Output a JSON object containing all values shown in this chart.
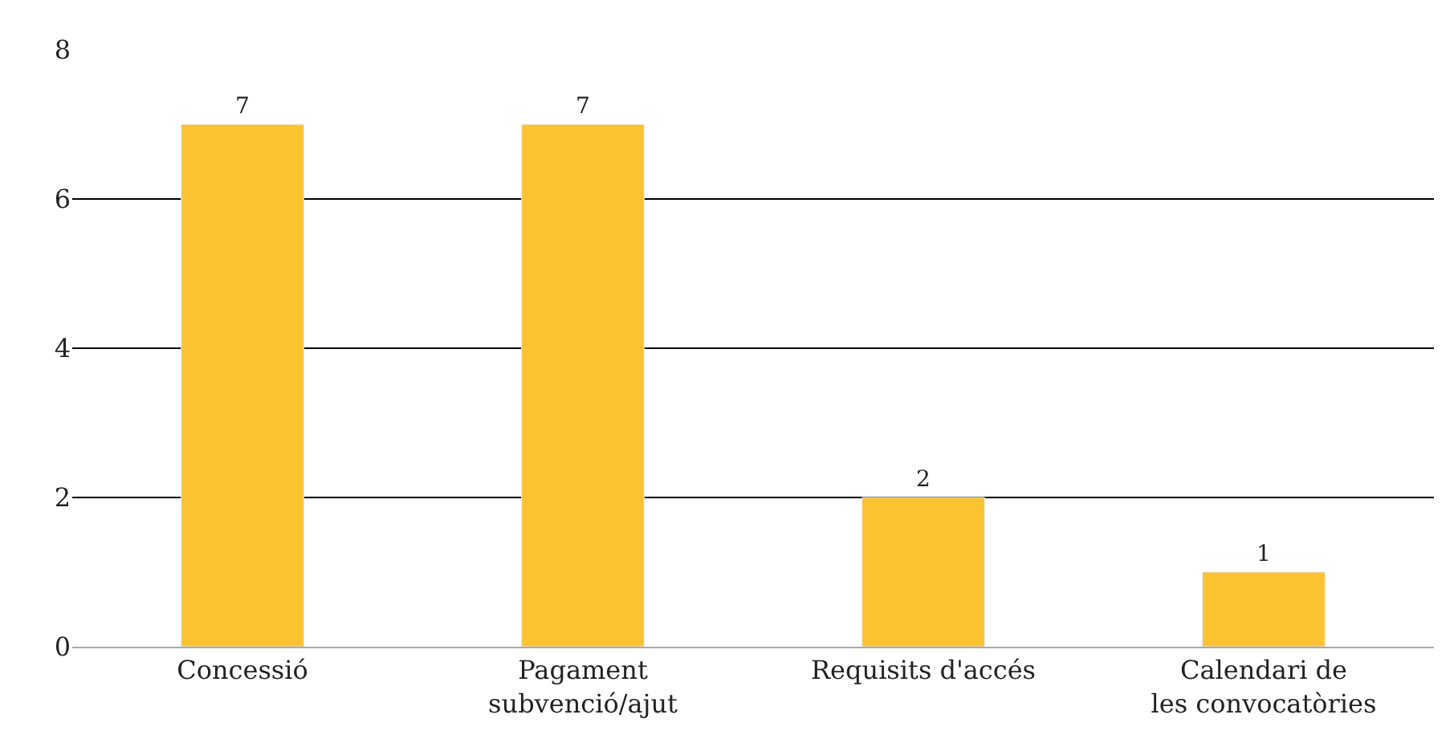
{
  "chart_data": {
    "type": "bar",
    "categories": [
      "Concessió",
      "Pagament\nsubvenció/ajut",
      "Requisits d'accés",
      "Calendari de\nles convocatòries"
    ],
    "values": [
      7,
      7,
      2,
      1
    ],
    "color": "#fbc232",
    "ylim": [
      0,
      8
    ],
    "yticks": [
      0,
      2,
      4,
      6,
      8
    ],
    "grid": "y",
    "data_labels": true
  }
}
